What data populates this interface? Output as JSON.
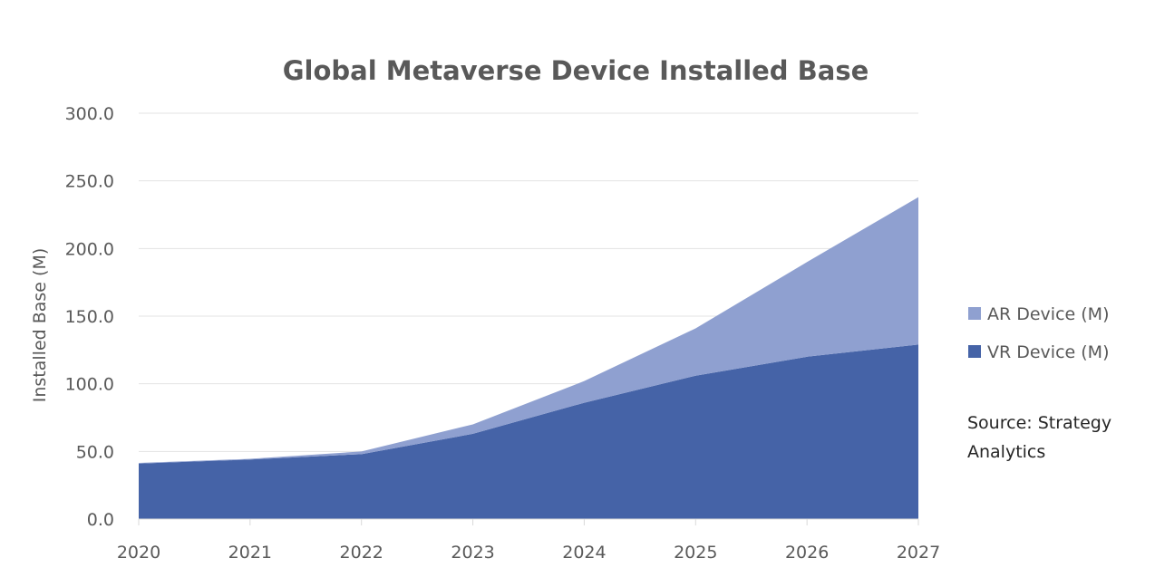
{
  "chart_data": {
    "type": "area",
    "stacked": true,
    "title": "Global Metaverse Device Installed Base",
    "xlabel": "",
    "ylabel": "Installed Base (M)",
    "x": [
      "2020",
      "2021",
      "2022",
      "2023",
      "2024",
      "2025",
      "2026",
      "2027"
    ],
    "ylim": [
      0,
      300
    ],
    "yticks": [
      "0.0",
      "50.0",
      "100.0",
      "150.0",
      "200.0",
      "250.0",
      "300.0"
    ],
    "ytick_values": [
      0,
      50,
      100,
      150,
      200,
      250,
      300
    ],
    "grid": true,
    "legend_position": "right",
    "series": [
      {
        "name": "VR Device (M)",
        "color": "#4563a7",
        "values": [
          41,
          44,
          48,
          63,
          86,
          106,
          120,
          129
        ]
      },
      {
        "name": "AR Device (M)",
        "color": "#8fa0d0",
        "values": [
          0.5,
          0.5,
          2,
          7,
          16,
          35,
          70,
          109
        ]
      }
    ],
    "legend": [
      {
        "label": "AR Device (M)",
        "color": "#8fa0d0"
      },
      {
        "label": "VR Device (M)",
        "color": "#4563a7"
      }
    ],
    "annotations": {
      "source_line1": "Source: Strategy",
      "source_line2": "Analytics"
    }
  }
}
